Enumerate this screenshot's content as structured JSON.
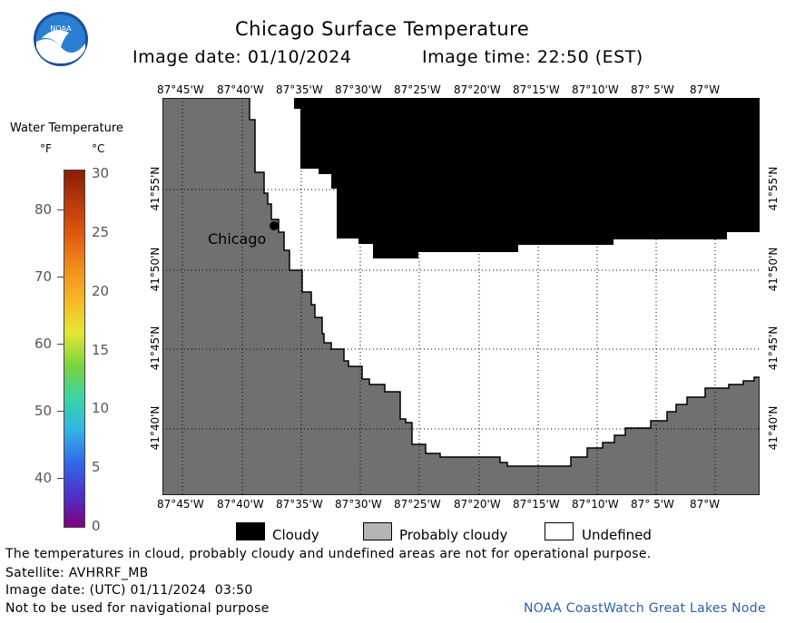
{
  "header": {
    "title": "Chicago Surface Temperature",
    "image_date_label": "Image date: 01/10/2024",
    "image_time_label": "Image time: 22:50 (EST)",
    "logo_text": "NOAA"
  },
  "colorbar": {
    "title": "Water Temperature",
    "unit_f": "°F",
    "unit_c": "°C",
    "f_ticks": [
      "80",
      "70",
      "60",
      "50",
      "40"
    ],
    "c_ticks": [
      "30",
      "25",
      "20",
      "15",
      "10",
      "5",
      "0"
    ],
    "colors": [
      "#800080",
      "#4b33c8",
      "#2f6be8",
      "#32b5e6",
      "#3ad5a0",
      "#7dd43c",
      "#e6e632",
      "#f7b827",
      "#f28d1a",
      "#e05a0f",
      "#b93a0b",
      "#8a1d05"
    ]
  },
  "map": {
    "lon_labels": [
      "87°45'W",
      "87°40'W",
      "87°35'W",
      "87°30'W",
      "87°25'W",
      "87°20'W",
      "87°15'W",
      "87°10'W",
      "87° 5'W",
      "87°W"
    ],
    "lat_labels": [
      "41°55'N",
      "41°50'N",
      "41°45'N",
      "41°40'N"
    ],
    "city_label": "Chicago",
    "colors": {
      "land": "#707070",
      "cloudy": "#000000",
      "undefined": "#ffffff"
    }
  },
  "legend": {
    "items": [
      {
        "label": "Cloudy",
        "color": "#000000"
      },
      {
        "label": "Probably cloudy",
        "color": "#b4b4b4"
      },
      {
        "label": "Undefined",
        "color": "#ffffff"
      }
    ]
  },
  "footer": {
    "disclaimer": "The temperatures in cloud, probably cloudy and undefined areas are not for operational purpose.",
    "satellite": "Satellite: AVHRRF_MB",
    "utc_date": "Image date: (UTC) 01/11/2024  03:50",
    "nav_warning": "Not to be used for navigational purpose",
    "credit": "NOAA CoastWatch Great Lakes Node"
  }
}
